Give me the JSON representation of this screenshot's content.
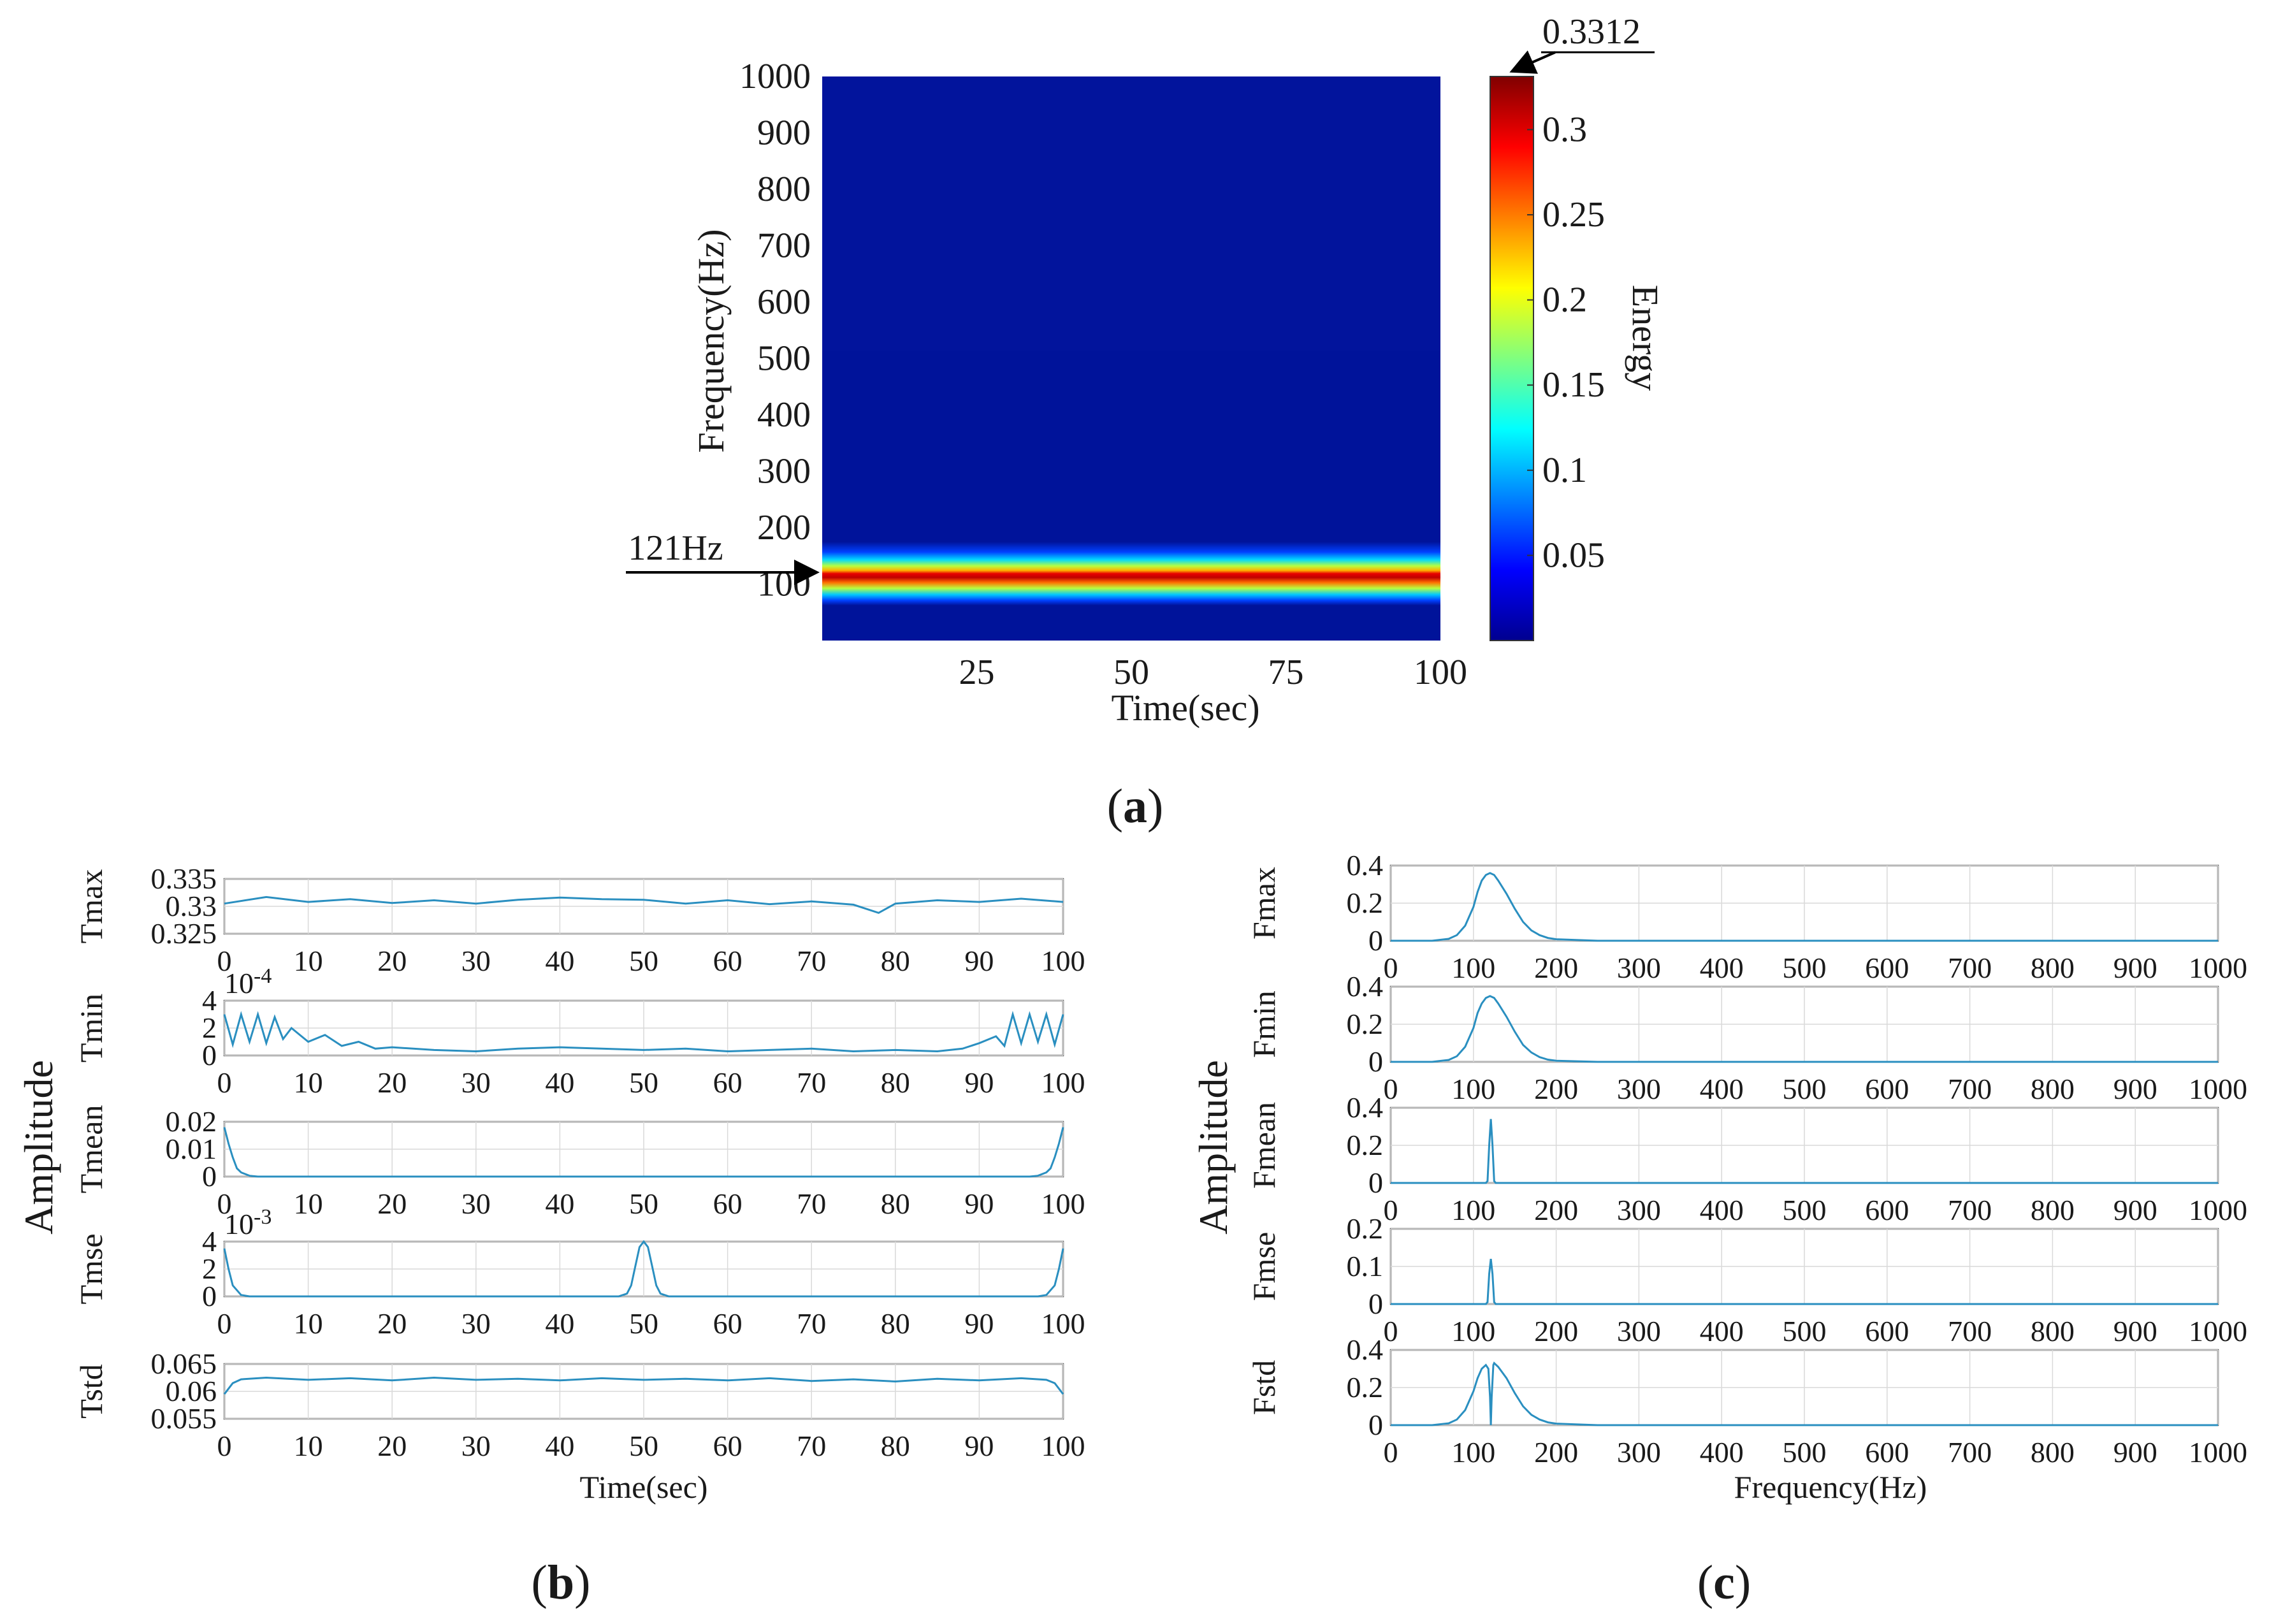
{
  "colors": {
    "series": "#2a8fc0",
    "spectrogram_background": "#00139a",
    "arrow": "#000000"
  },
  "captions": {
    "a": "a",
    "b": "b",
    "c": "c"
  },
  "chart_data": [
    {
      "id": "a",
      "type": "heatmap",
      "title": "",
      "xlabel": "Time(sec)",
      "ylabel": "Frequency(Hz)",
      "xlim": [
        0,
        100
      ],
      "ylim": [
        0,
        1000
      ],
      "xticks": [
        25,
        50,
        75,
        100
      ],
      "yticks": [
        100,
        200,
        300,
        400,
        500,
        600,
        700,
        800,
        900,
        1000
      ],
      "colorbar": {
        "label": "Energy",
        "range": [
          0,
          0.3312
        ],
        "ticks": [
          0.05,
          0.1,
          0.15,
          0.2,
          0.25,
          0.3
        ],
        "max_annotation": "0.3312"
      },
      "band": {
        "center_hz": 121,
        "peak_energy": 0.3312,
        "width_hz": 22
      },
      "annotation": "121Hz"
    },
    {
      "id": "b",
      "type": "line",
      "xlabel": "Time(sec)",
      "ylabel": "Amplitude",
      "xlim": [
        0,
        100
      ],
      "xticks": [
        0,
        10,
        20,
        30,
        40,
        50,
        60,
        70,
        80,
        90,
        100
      ],
      "panels": [
        {
          "name": "Tmax",
          "ylim": [
            0.325,
            0.335
          ],
          "yticks": [
            "0.335",
            "0.33",
            "0.325"
          ],
          "x": [
            0,
            5,
            10,
            15,
            20,
            25,
            30,
            35,
            40,
            45,
            50,
            55,
            60,
            65,
            70,
            75,
            78,
            80,
            85,
            90,
            95,
            100
          ],
          "y": [
            0.3305,
            0.3317,
            0.3308,
            0.3313,
            0.3306,
            0.3311,
            0.3305,
            0.3312,
            0.3316,
            0.3313,
            0.3312,
            0.3305,
            0.3311,
            0.3304,
            0.3309,
            0.3303,
            0.3288,
            0.3305,
            0.3311,
            0.3308,
            0.3314,
            0.3308
          ]
        },
        {
          "name": "Tmin",
          "exponent": "10-4",
          "ylim": [
            0,
            4
          ],
          "yticks": [
            "4",
            "2",
            "0"
          ],
          "x": [
            0,
            1,
            2,
            3,
            4,
            5,
            6,
            7,
            8,
            10,
            12,
            14,
            16,
            18,
            20,
            25,
            30,
            35,
            40,
            45,
            50,
            55,
            60,
            65,
            70,
            75,
            80,
            85,
            88,
            90,
            92,
            93,
            94,
            95,
            96,
            97,
            98,
            99,
            100
          ],
          "y": [
            3.0,
            0.8,
            3.0,
            1.0,
            3.0,
            0.9,
            2.8,
            1.2,
            2.0,
            1.0,
            1.5,
            0.7,
            1.0,
            0.5,
            0.6,
            0.4,
            0.3,
            0.5,
            0.6,
            0.5,
            0.4,
            0.5,
            0.3,
            0.4,
            0.5,
            0.3,
            0.4,
            0.3,
            0.5,
            0.9,
            1.4,
            0.7,
            3.0,
            0.9,
            3.0,
            1.0,
            3.0,
            0.8,
            3.0
          ]
        },
        {
          "name": "Tmean",
          "ylim": [
            0,
            0.02
          ],
          "yticks": [
            "0.02",
            "0.01",
            "0"
          ],
          "x": [
            0,
            0.5,
            1,
            1.5,
            2,
            3,
            4,
            96,
            97,
            98,
            98.5,
            99,
            99.5,
            100
          ],
          "y": [
            0.018,
            0.012,
            0.007,
            0.003,
            0.0015,
            0.0003,
            0,
            0,
            0.0003,
            0.0015,
            0.003,
            0.007,
            0.012,
            0.018
          ]
        },
        {
          "name": "Tmse",
          "exponent": "10-3",
          "ylim": [
            0,
            4
          ],
          "yticks": [
            "4",
            "2",
            "0"
          ],
          "x": [
            0,
            0.5,
            1,
            2,
            3,
            47,
            48,
            48.5,
            49,
            49.5,
            50,
            50.5,
            51,
            51.5,
            52,
            53,
            97,
            98,
            99,
            99.5,
            100
          ],
          "y": [
            3.5,
            2.0,
            0.8,
            0.1,
            0,
            0,
            0.2,
            0.8,
            2.2,
            3.6,
            4.0,
            3.6,
            2.2,
            0.8,
            0.2,
            0,
            0,
            0.1,
            0.8,
            2.0,
            3.5
          ]
        },
        {
          "name": "Tstd",
          "ylim": [
            0.055,
            0.065
          ],
          "yticks": [
            "0.065",
            "0.06",
            "0.055"
          ],
          "x": [
            0,
            1,
            2,
            5,
            10,
            15,
            20,
            25,
            30,
            35,
            40,
            45,
            50,
            55,
            60,
            65,
            70,
            75,
            80,
            85,
            90,
            95,
            98,
            99,
            100
          ],
          "y": [
            0.0595,
            0.0615,
            0.0622,
            0.0625,
            0.0621,
            0.0624,
            0.062,
            0.0625,
            0.0621,
            0.0623,
            0.062,
            0.0624,
            0.0621,
            0.0623,
            0.062,
            0.0624,
            0.0619,
            0.0622,
            0.0618,
            0.0623,
            0.062,
            0.0624,
            0.0621,
            0.0615,
            0.0595
          ]
        }
      ]
    },
    {
      "id": "c",
      "type": "line",
      "xlabel": "Frequency(Hz)",
      "ylabel": "Amplitude",
      "xlim": [
        0,
        1000
      ],
      "xticks": [
        0,
        100,
        200,
        300,
        400,
        500,
        600,
        700,
        800,
        900,
        1000
      ],
      "panels": [
        {
          "name": "Fmax",
          "ylim": [
            0,
            0.4
          ],
          "yticks": [
            "0.4",
            "0.2",
            "0"
          ],
          "x": [
            0,
            50,
            70,
            80,
            90,
            100,
            105,
            110,
            115,
            120,
            125,
            130,
            140,
            150,
            160,
            170,
            180,
            190,
            200,
            250,
            1000
          ],
          "y": [
            0,
            0,
            0.01,
            0.03,
            0.08,
            0.18,
            0.26,
            0.32,
            0.35,
            0.36,
            0.35,
            0.32,
            0.25,
            0.17,
            0.1,
            0.055,
            0.03,
            0.015,
            0.008,
            0,
            0
          ]
        },
        {
          "name": "Fmin",
          "ylim": [
            0,
            0.4
          ],
          "yticks": [
            "0.4",
            "0.2",
            "0"
          ],
          "x": [
            0,
            50,
            70,
            80,
            90,
            100,
            105,
            110,
            115,
            120,
            125,
            130,
            140,
            150,
            160,
            170,
            180,
            190,
            200,
            250,
            1000
          ],
          "y": [
            0,
            0,
            0.01,
            0.03,
            0.08,
            0.18,
            0.26,
            0.31,
            0.34,
            0.35,
            0.34,
            0.31,
            0.24,
            0.16,
            0.09,
            0.05,
            0.025,
            0.012,
            0.006,
            0,
            0
          ]
        },
        {
          "name": "Fmean",
          "ylim": [
            0,
            0.4
          ],
          "yticks": [
            "0.4",
            "0.2",
            "0"
          ],
          "x": [
            0,
            115,
            117,
            119,
            121,
            123,
            125,
            127,
            1000
          ],
          "y": [
            0,
            0,
            0.01,
            0.2,
            0.34,
            0.2,
            0.01,
            0,
            0
          ]
        },
        {
          "name": "Fmse",
          "ylim": [
            0,
            0.2
          ],
          "yticks": [
            "0.2",
            "0.1",
            "0"
          ],
          "x": [
            0,
            115,
            117,
            119,
            121,
            123,
            125,
            127,
            1000
          ],
          "y": [
            0,
            0,
            0.005,
            0.08,
            0.12,
            0.08,
            0.005,
            0,
            0
          ]
        },
        {
          "name": "Fstd",
          "ylim": [
            0,
            0.4
          ],
          "yticks": [
            "0.4",
            "0.2",
            "0"
          ],
          "x": [
            0,
            50,
            70,
            80,
            90,
            100,
            105,
            110,
            115,
            118,
            120,
            121,
            122,
            124,
            125,
            130,
            140,
            150,
            160,
            170,
            180,
            190,
            200,
            250,
            1000
          ],
          "y": [
            0,
            0,
            0.01,
            0.03,
            0.08,
            0.18,
            0.25,
            0.3,
            0.32,
            0.3,
            0.15,
            0.0,
            0.15,
            0.32,
            0.33,
            0.31,
            0.25,
            0.17,
            0.1,
            0.055,
            0.03,
            0.015,
            0.008,
            0,
            0
          ]
        }
      ]
    }
  ]
}
